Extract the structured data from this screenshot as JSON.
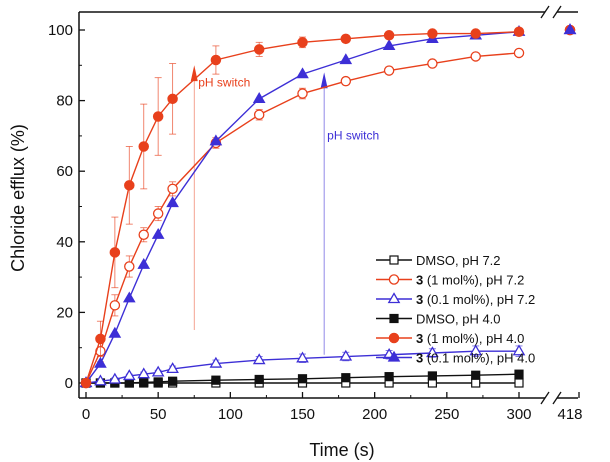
{
  "chart_data": {
    "type": "line",
    "xlabel": "Time (s)",
    "ylabel": "Chloride efflux (%)",
    "xlim": [
      0,
      300
    ],
    "ylim": [
      -3,
      105
    ],
    "x_ticks": [
      "0",
      "50",
      "100",
      "150",
      "200",
      "250",
      "300"
    ],
    "x_break_tick": "418",
    "y_ticks": [
      "0",
      "20",
      "40",
      "60",
      "80",
      "100"
    ],
    "grid": false,
    "legend_position": "right",
    "annotations": [
      {
        "text": "pH switch",
        "x": 75,
        "color": "#e8401c"
      },
      {
        "text": "pH switch",
        "x": 165,
        "color": "#3d2fd6"
      }
    ],
    "series": [
      {
        "legend_prefix": "",
        "legend_label": "DMSO, pH 7.2",
        "color": "#111111",
        "marker": "square-open",
        "x": [
          0,
          10,
          20,
          30,
          40,
          50,
          60,
          90,
          120,
          150,
          180,
          210,
          240,
          270,
          300
        ],
        "values": [
          0,
          0,
          0,
          0,
          0,
          0,
          0,
          0,
          0,
          0,
          0,
          0,
          0,
          0,
          0
        ]
      },
      {
        "legend_prefix": "3",
        "legend_label": " (1 mol%), pH 7.2",
        "color": "#e8401c",
        "marker": "circle-open",
        "x": [
          0,
          10,
          20,
          30,
          40,
          50,
          60,
          90,
          120,
          150,
          180,
          210,
          240,
          270,
          300
        ],
        "values": [
          0,
          9,
          22,
          33,
          42,
          48,
          55,
          68,
          76,
          82,
          85.5,
          88.5,
          90.5,
          92.5,
          93.5
        ],
        "errors": [
          0,
          3,
          3,
          3,
          2,
          2,
          2,
          1.5,
          1.5,
          1.5,
          1,
          1,
          0.8,
          0.8,
          0.8
        ]
      },
      {
        "legend_prefix": "3",
        "legend_label": " (0.1 mol%), pH 7.2",
        "color": "#3d2fd6",
        "marker": "triangle-open",
        "x": [
          0,
          10,
          20,
          30,
          40,
          50,
          60,
          90,
          120,
          150,
          180,
          210,
          240,
          270,
          300
        ],
        "values": [
          0,
          0.5,
          1,
          2,
          2.5,
          3,
          4,
          5.5,
          6.5,
          7,
          7.5,
          8,
          8.5,
          9,
          9
        ],
        "errors": [
          0,
          0.3,
          0.5,
          0.5,
          0.6,
          0.6,
          0.8,
          1,
          1,
          1.2,
          1.2,
          1.2,
          1.2,
          1.5,
          1.5
        ]
      },
      {
        "legend_prefix": "",
        "legend_label": "DMSO, pH 4.0",
        "color": "#111111",
        "marker": "square-filled",
        "x": [
          0,
          10,
          20,
          30,
          40,
          50,
          60,
          90,
          120,
          150,
          180,
          210,
          240,
          270,
          300
        ],
        "values": [
          0,
          0,
          0,
          0,
          0.2,
          0.3,
          0.5,
          0.8,
          1,
          1.2,
          1.5,
          1.8,
          2,
          2.2,
          2.5
        ]
      },
      {
        "legend_prefix": "3",
        "legend_label": " (1 mol%), pH 4.0",
        "color": "#e8401c",
        "marker": "circle-filled",
        "x": [
          0,
          10,
          20,
          30,
          40,
          50,
          60,
          90,
          120,
          150,
          180,
          210,
          240,
          270,
          300
        ],
        "values": [
          0,
          12.5,
          37,
          56,
          67,
          75.5,
          80.5,
          91.5,
          94.5,
          96.5,
          97.5,
          98.5,
          99,
          99,
          99.5
        ],
        "errors": [
          0,
          5,
          10,
          11,
          12,
          11,
          10,
          4,
          2,
          1.5,
          1,
          1,
          0.8,
          0.8,
          0.8
        ]
      },
      {
        "legend_prefix": "3",
        "legend_label": " (0.1 mol%), pH 4.0",
        "color": "#3d2fd6",
        "marker": "triangle-filled",
        "x": [
          0,
          10,
          20,
          30,
          40,
          50,
          60,
          90,
          120,
          150,
          180,
          210,
          240,
          270,
          300
        ],
        "values": [
          0,
          5.5,
          14,
          24,
          33.5,
          42,
          51,
          68.5,
          80.5,
          87.5,
          91.5,
          95.5,
          97.5,
          98.5,
          99.5
        ]
      }
    ],
    "break_points": [
      {
        "x_label": "418",
        "y": 100,
        "markers": [
          "triangle-open",
          "circle-open",
          "circle-filled",
          "triangle-filled"
        ],
        "colors": [
          "#3d2fd6",
          "#e8401c",
          "#e8401c",
          "#3d2fd6"
        ]
      }
    ]
  }
}
